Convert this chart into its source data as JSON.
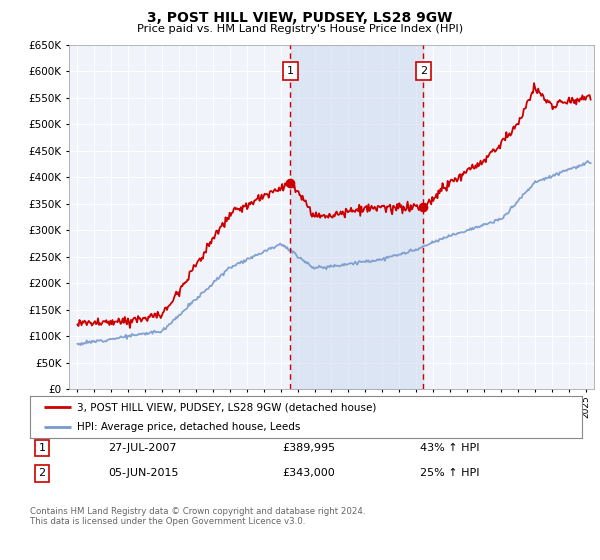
{
  "title": "3, POST HILL VIEW, PUDSEY, LS28 9GW",
  "subtitle": "Price paid vs. HM Land Registry's House Price Index (HPI)",
  "ylim": [
    0,
    650000
  ],
  "yticks": [
    0,
    50000,
    100000,
    150000,
    200000,
    250000,
    300000,
    350000,
    400000,
    450000,
    500000,
    550000,
    600000,
    650000
  ],
  "ytick_labels": [
    "£0",
    "£50K",
    "£100K",
    "£150K",
    "£200K",
    "£250K",
    "£300K",
    "£350K",
    "£400K",
    "£450K",
    "£500K",
    "£550K",
    "£600K",
    "£650K"
  ],
  "xlim": [
    1994.5,
    2025.5
  ],
  "bg_color": "#f0f4fa",
  "grid_color": "#ffffff",
  "red_color": "#cc0000",
  "blue_color": "#7799cc",
  "fill_color": "#ccd9ee",
  "transaction1_x": 2007.57,
  "transaction1_y": 389995,
  "transaction2_x": 2015.43,
  "transaction2_y": 343000,
  "legend_line1": "3, POST HILL VIEW, PUDSEY, LS28 9GW (detached house)",
  "legend_line2": "HPI: Average price, detached house, Leeds",
  "transaction1_date": "27-JUL-2007",
  "transaction1_price": "£389,995",
  "transaction1_hpi": "43% ↑ HPI",
  "transaction2_date": "05-JUN-2015",
  "transaction2_price": "£343,000",
  "transaction2_hpi": "25% ↑ HPI",
  "footer": "Contains HM Land Registry data © Crown copyright and database right 2024.\nThis data is licensed under the Open Government Licence v3.0."
}
